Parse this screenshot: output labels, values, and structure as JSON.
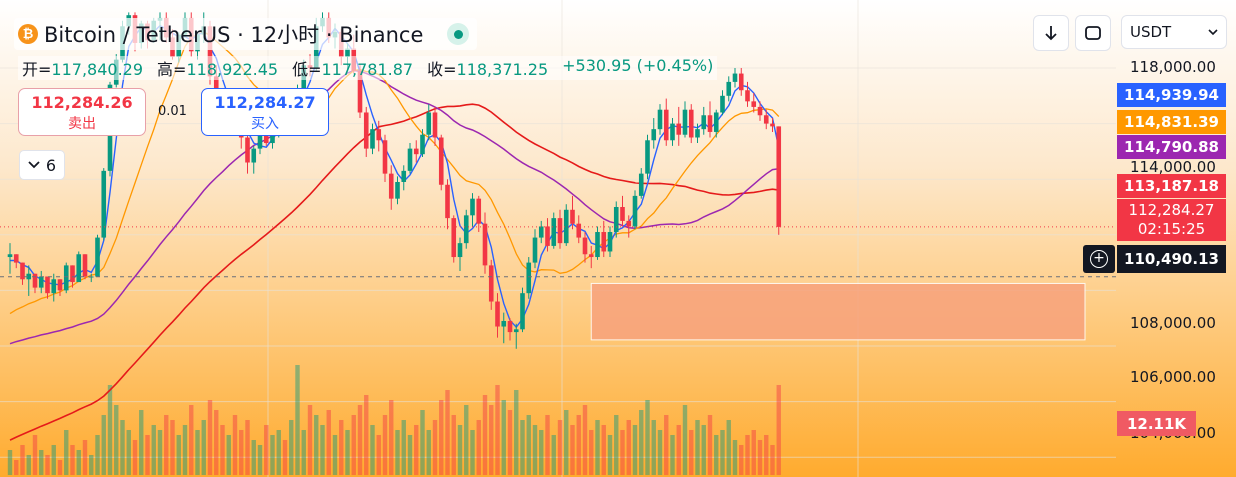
{
  "header": {
    "title": "Bitcoin / TetherUS · 12小时 · Binance",
    "coin_icon_symbol": "₿",
    "live_status_icon": "live-dot-icon",
    "ohlc": {
      "open_label": "开=",
      "open": "117,840.29",
      "high_label": "高=",
      "high": "118,922.45",
      "low_label": "低=",
      "low": "117,781.87",
      "close_label": "收=",
      "close": "118,371.25",
      "change": "+530.95 (+0.45%)"
    }
  },
  "trade": {
    "sell_price": "112,284.26",
    "sell_label": "卖出",
    "spread": "0.01",
    "buy_price": "112,284.27",
    "buy_label": "买入"
  },
  "indicators_toggle": {
    "icon": "chevron-down-icon",
    "count": "6"
  },
  "toolbar": {
    "download_icon": "arrow-down-icon",
    "fullscreen_icon": "fullscreen-icon",
    "currency": "USDT",
    "currency_icon": "chevron-down-icon"
  },
  "price_axis": {
    "labels": [
      "118,000.00",
      "114,000.00",
      "108,000.00",
      "106,000.00",
      "104,000.00"
    ],
    "tags": {
      "ma_blue": "114,939.94",
      "ma_orange": "114,831.39",
      "ma_purple": "114,790.88",
      "ma_red": "113,187.18",
      "last_price": "112,284.27",
      "countdown": "02:15:25",
      "crosshair": "110,490.13",
      "volume": "12.11K"
    }
  },
  "colors": {
    "up": "#089981",
    "down": "#f23645",
    "ma_blue": "#2962ff",
    "ma_orange": "#ff9800",
    "ma_purple": "#9c27b0",
    "ma_red": "#e51a1a",
    "zone": "#f8a27c",
    "bg_top": "#ffffff",
    "bg_bottom": "#ffab2e"
  },
  "chart_data": {
    "type": "candlestick",
    "ylim": [
      103600,
      120000
    ],
    "grid": true,
    "candles": [
      [
        111200,
        111700,
        110600,
        111300
      ],
      [
        111300,
        111300,
        110800,
        111000
      ],
      [
        111000,
        111000,
        110200,
        110400
      ],
      [
        110400,
        110900,
        109800,
        110600
      ],
      [
        110600,
        110600,
        109900,
        110100
      ],
      [
        110100,
        110700,
        109900,
        110500
      ],
      [
        110500,
        110500,
        109700,
        109900
      ],
      [
        109900,
        110600,
        109600,
        110400
      ],
      [
        110400,
        110400,
        109800,
        110000
      ],
      [
        110000,
        111000,
        109900,
        110900
      ],
      [
        110900,
        110900,
        110100,
        110300
      ],
      [
        110300,
        111400,
        110300,
        111300
      ],
      [
        111300,
        111300,
        110400,
        110500
      ],
      [
        110500,
        110600,
        110300,
        110500
      ],
      [
        110500,
        112000,
        110500,
        111900
      ],
      [
        111900,
        114400,
        111800,
        114300
      ],
      [
        114300,
        117500,
        114100,
        117400
      ],
      [
        117400,
        118500,
        117300,
        118300
      ],
      [
        118300,
        119700,
        118200,
        119500
      ],
      [
        119500,
        120000,
        119200,
        119900
      ],
      [
        119900,
        120000,
        118600,
        118900
      ],
      [
        118900,
        119700,
        118700,
        119600
      ],
      [
        119600,
        119700,
        118700,
        119000
      ],
      [
        119000,
        119800,
        118900,
        119700
      ],
      [
        119700,
        120000,
        119000,
        119800
      ],
      [
        119800,
        120000,
        118900,
        119100
      ],
      [
        119100,
        119400,
        118300,
        118400
      ],
      [
        118400,
        119300,
        118200,
        119200
      ],
      [
        119200,
        120000,
        119100,
        119800
      ],
      [
        119800,
        120000,
        118400,
        118600
      ],
      [
        118600,
        119300,
        118300,
        119200
      ],
      [
        119200,
        120000,
        118900,
        119500
      ],
      [
        119500,
        119700,
        117400,
        117700
      ],
      [
        117700,
        118100,
        116700,
        117000
      ],
      [
        117000,
        117100,
        115800,
        116200
      ],
      [
        116200,
        117000,
        116000,
        116800
      ],
      [
        116800,
        117000,
        115600,
        116000
      ],
      [
        116000,
        116100,
        115100,
        115500
      ],
      [
        115500,
        115700,
        114200,
        114600
      ],
      [
        114600,
        115200,
        114200,
        115100
      ],
      [
        115100,
        115700,
        114900,
        115600
      ],
      [
        115600,
        116000,
        115200,
        115300
      ],
      [
        115300,
        115900,
        115100,
        115800
      ],
      [
        115800,
        116300,
        115500,
        116200
      ],
      [
        116200,
        116400,
        115700,
        116000
      ],
      [
        116000,
        116900,
        115800,
        116700
      ],
      [
        116700,
        117400,
        116500,
        117200
      ],
      [
        117200,
        118300,
        117000,
        118100
      ],
      [
        118100,
        118500,
        117700,
        118000
      ],
      [
        118000,
        119800,
        117900,
        119500
      ],
      [
        119500,
        120000,
        119300,
        119800
      ],
      [
        119800,
        120000,
        118900,
        119100
      ],
      [
        119100,
        119600,
        118700,
        119300
      ],
      [
        119300,
        119400,
        118100,
        118400
      ],
      [
        118400,
        118900,
        117900,
        118700
      ],
      [
        118700,
        119200,
        117800,
        117900
      ],
      [
        117900,
        118100,
        116200,
        116400
      ],
      [
        116400,
        116600,
        114800,
        115100
      ],
      [
        115100,
        116000,
        114900,
        115800
      ],
      [
        115800,
        116100,
        115000,
        115400
      ],
      [
        115400,
        115600,
        113900,
        114200
      ],
      [
        114200,
        114500,
        112900,
        113300
      ],
      [
        113300,
        114100,
        113100,
        113900
      ],
      [
        113900,
        114500,
        113600,
        114300
      ],
      [
        114300,
        115300,
        114200,
        115100
      ],
      [
        115100,
        115400,
        114600,
        114900
      ],
      [
        114900,
        115800,
        114800,
        115600
      ],
      [
        115600,
        116700,
        115400,
        116400
      ],
      [
        116400,
        116600,
        115200,
        115500
      ],
      [
        115500,
        115600,
        113600,
        113800
      ],
      [
        113800,
        114000,
        112200,
        112600
      ],
      [
        112600,
        112700,
        111000,
        111200
      ],
      [
        111200,
        111900,
        110700,
        111700
      ],
      [
        111700,
        112900,
        111500,
        112700
      ],
      [
        112700,
        113500,
        112300,
        113300
      ],
      [
        113300,
        113400,
        112100,
        112400
      ],
      [
        112400,
        112800,
        110600,
        110900
      ],
      [
        110900,
        111100,
        109300,
        109600
      ],
      [
        109600,
        109900,
        108300,
        108700
      ],
      [
        108700,
        109200,
        108100,
        108900
      ],
      [
        108900,
        109000,
        108200,
        108500
      ],
      [
        108500,
        108800,
        107900,
        108600
      ],
      [
        108600,
        110100,
        108500,
        109900
      ],
      [
        109900,
        111200,
        109700,
        111000
      ],
      [
        111000,
        112200,
        110800,
        111900
      ],
      [
        111900,
        112500,
        111700,
        112300
      ],
      [
        112300,
        112600,
        111400,
        111600
      ],
      [
        111600,
        112800,
        111500,
        112600
      ],
      [
        112600,
        112900,
        111500,
        111700
      ],
      [
        111700,
        113100,
        111600,
        112900
      ],
      [
        112900,
        113400,
        112200,
        112400
      ],
      [
        112400,
        112700,
        111700,
        111900
      ],
      [
        111900,
        112100,
        111000,
        111300
      ],
      [
        111300,
        111600,
        110800,
        111200
      ],
      [
        111200,
        112300,
        111100,
        112100
      ],
      [
        112100,
        112500,
        111200,
        111400
      ],
      [
        111400,
        112300,
        111200,
        112100
      ],
      [
        112100,
        113200,
        111900,
        113000
      ],
      [
        113000,
        113400,
        112300,
        112500
      ],
      [
        112500,
        112700,
        111900,
        112300
      ],
      [
        112300,
        113600,
        112200,
        113400
      ],
      [
        113400,
        114400,
        113300,
        114200
      ],
      [
        114200,
        115600,
        114000,
        115400
      ],
      [
        115400,
        116200,
        115100,
        115800
      ],
      [
        115800,
        116700,
        115600,
        116500
      ],
      [
        116500,
        116900,
        115200,
        115400
      ],
      [
        115400,
        116200,
        115200,
        116000
      ],
      [
        116000,
        116600,
        115200,
        115600
      ],
      [
        115600,
        116800,
        115500,
        116500
      ],
      [
        116500,
        116700,
        115300,
        115500
      ],
      [
        115500,
        116000,
        115300,
        115800
      ],
      [
        115800,
        116600,
        115600,
        116300
      ],
      [
        116300,
        116800,
        115500,
        115700
      ],
      [
        115700,
        116500,
        115500,
        116400
      ],
      [
        116400,
        117200,
        116300,
        117000
      ],
      [
        117000,
        117700,
        116800,
        117500
      ],
      [
        117500,
        118000,
        117300,
        117800
      ],
      [
        117800,
        118000,
        117000,
        117200
      ],
      [
        117200,
        117500,
        116600,
        116800
      ],
      [
        116800,
        117100,
        116400,
        116600
      ],
      [
        116600,
        116800,
        116100,
        116300
      ],
      [
        116300,
        116500,
        115800,
        116000
      ],
      [
        116000,
        116200,
        115700,
        115900
      ],
      [
        115900,
        115900,
        112000,
        112284
      ]
    ],
    "volumes": [
      5,
      3,
      6,
      4,
      8,
      5,
      4,
      6,
      3,
      9,
      6,
      5,
      7,
      4,
      8,
      12,
      18,
      14,
      11,
      9,
      7,
      13,
      8,
      10,
      9,
      12,
      11,
      8,
      10,
      14,
      9,
      11,
      15,
      13,
      10,
      8,
      12,
      9,
      11,
      7,
      6,
      10,
      8,
      9,
      7,
      11,
      22,
      9,
      14,
      12,
      10,
      13,
      8,
      11,
      9,
      12,
      14,
      16,
      10,
      8,
      12,
      15,
      9,
      11,
      8,
      10,
      13,
      9,
      11,
      15,
      17,
      12,
      10,
      14,
      9,
      11,
      16,
      14,
      18,
      15,
      13,
      17,
      11,
      12,
      10,
      9,
      12,
      8,
      11,
      13,
      10,
      12,
      14,
      9,
      11,
      10,
      8,
      12,
      9,
      11,
      10,
      13,
      15,
      11,
      9,
      12,
      8,
      10,
      14,
      9,
      11,
      10,
      12,
      8,
      9,
      11,
      7,
      6,
      8,
      9,
      7,
      8,
      6,
      18
    ],
    "zone_box": {
      "x_from_index": 93,
      "x_to_index": 172,
      "price_high": 110250,
      "price_low": 108220
    },
    "crosshair_price": 110490.13,
    "last_price": 112284.27
  }
}
